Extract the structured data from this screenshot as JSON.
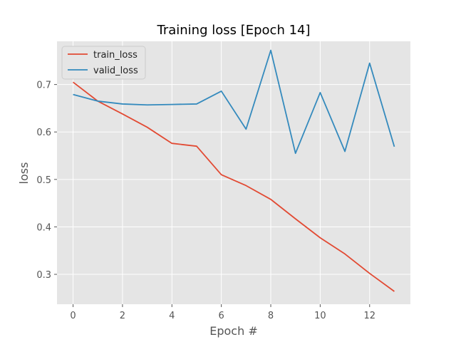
{
  "chart_data": {
    "type": "line",
    "title": "Training loss [Epoch 14]",
    "xlabel": "Epoch #",
    "ylabel": "loss",
    "xlim": [
      -0.65,
      13.65
    ],
    "ylim": [
      0.237,
      0.791
    ],
    "xticks": [
      0,
      2,
      4,
      6,
      8,
      10,
      12
    ],
    "yticks": [
      0.3,
      0.4,
      0.5,
      0.6,
      0.7
    ],
    "grid": true,
    "legend_position": "top-left",
    "background": "#e5e5e5",
    "x": [
      0,
      1,
      2,
      3,
      4,
      5,
      6,
      7,
      8,
      9,
      10,
      11,
      12,
      13
    ],
    "series": [
      {
        "name": "train_loss",
        "color": "#e24a33",
        "values": [
          0.705,
          0.665,
          0.638,
          0.61,
          0.576,
          0.57,
          0.51,
          0.487,
          0.458,
          0.417,
          0.377,
          0.343,
          0.302,
          0.264
        ]
      },
      {
        "name": "valid_loss",
        "color": "#348abd",
        "values": [
          0.679,
          0.665,
          0.659,
          0.657,
          0.658,
          0.659,
          0.686,
          0.606,
          0.772,
          0.555,
          0.683,
          0.559,
          0.745,
          0.569
        ]
      }
    ]
  }
}
